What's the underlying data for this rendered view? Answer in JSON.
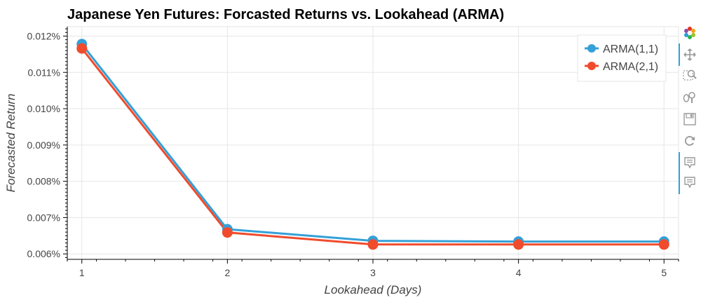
{
  "chart_data": {
    "type": "line",
    "title": "Japanese Yen Futures: Forcasted Returns vs. Lookahead (ARMA)",
    "xlabel": "Lookahead (Days)",
    "ylabel": "Forecasted Return",
    "x": [
      1,
      2,
      3,
      4,
      5
    ],
    "x_ticks": [
      "1",
      "2",
      "3",
      "4",
      "5"
    ],
    "y_ticks": [
      {
        "value": 0.006,
        "label": "0.006%"
      },
      {
        "value": 0.007,
        "label": "0.007%"
      },
      {
        "value": 0.008,
        "label": "0.008%"
      },
      {
        "value": 0.009,
        "label": "0.009%"
      },
      {
        "value": 0.01,
        "label": "0.010%"
      },
      {
        "value": 0.011,
        "label": "0.011%"
      },
      {
        "value": 0.012,
        "label": "0.012%"
      }
    ],
    "xlim": [
      0.9,
      5.1
    ],
    "ylim": [
      0.00585,
      0.01226
    ],
    "grid": true,
    "legend_position": "top-right",
    "series": [
      {
        "name": "ARMA(1,1)",
        "color": "#34a0d8",
        "values": [
          0.01178,
          0.00668,
          0.00636,
          0.00634,
          0.00634
        ]
      },
      {
        "name": "ARMA(2,1)",
        "color": "#f04b2c",
        "values": [
          0.01166,
          0.00659,
          0.00626,
          0.00626,
          0.00626
        ]
      }
    ]
  },
  "toolbar": {
    "icons": [
      "bokeh-logo-icon",
      "pan-icon",
      "box-zoom-icon",
      "wheel-zoom-icon",
      "save-icon",
      "reset-icon",
      "hover-icon",
      "hover-icon"
    ]
  }
}
